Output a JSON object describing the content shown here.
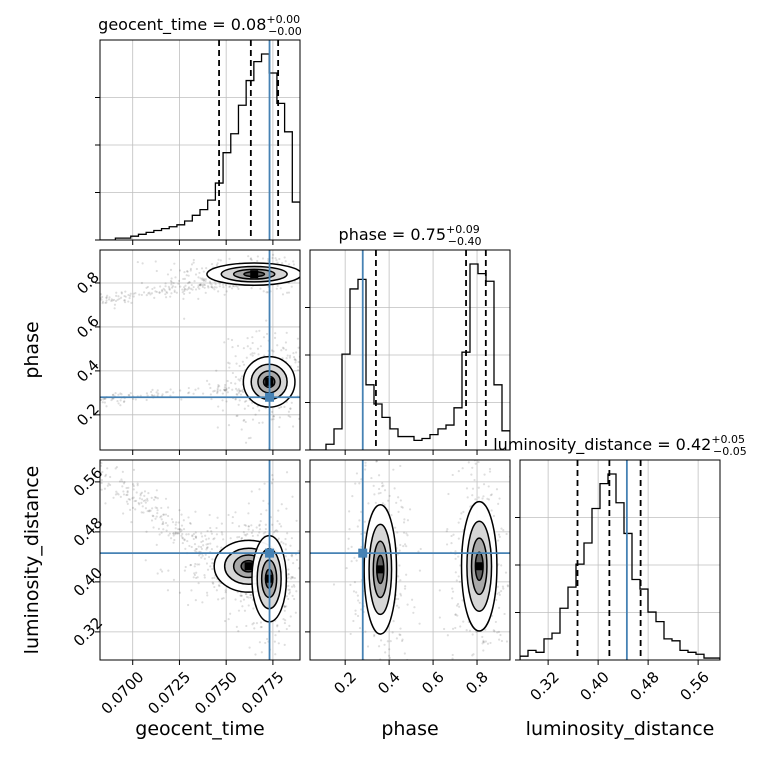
{
  "chart_data": {
    "type": "corner",
    "parameters": [
      "geocent_time",
      "phase",
      "luminosity_distance"
    ],
    "truths": {
      "geocent_time": 0.07732,
      "phase": 0.28,
      "luminosity_distance": 0.446
    },
    "ranges": {
      "geocent_time": [
        0.06825,
        0.07895
      ],
      "phase": [
        0.04,
        0.95
      ],
      "luminosity_distance": [
        0.275,
        0.595
      ]
    },
    "ticks": {
      "geocent_time": [
        0.07,
        0.0725,
        0.075,
        0.0775
      ],
      "phase": [
        0.2,
        0.4,
        0.6,
        0.8
      ],
      "luminosity_distance": [
        0.32,
        0.4,
        0.48,
        0.56
      ]
    },
    "tick_labels": {
      "geocent_time": [
        "0.0700",
        "0.0725",
        "0.0750",
        "0.0775"
      ],
      "phase": [
        "0.2",
        "0.4",
        "0.6",
        "0.8"
      ],
      "luminosity_distance": [
        "0.32",
        "0.40",
        "0.48",
        "0.56"
      ]
    },
    "titles": {
      "geocent_time": {
        "name": "geocent_time",
        "median": "0.08",
        "plus": "+0.00",
        "minus": "−0.00"
      },
      "phase": {
        "name": "phase",
        "median": "0.75",
        "plus": "+0.09",
        "minus": "−0.40"
      },
      "luminosity_distance": {
        "name": "luminosity_distance",
        "median": "0.42",
        "plus": "+0.05",
        "minus": "−0.05"
      }
    },
    "quantiles": {
      "geocent_time": [
        0.07462,
        0.07632,
        0.07778
      ],
      "phase": [
        0.34,
        0.75,
        0.84
      ],
      "luminosity_distance": [
        0.367,
        0.418,
        0.468
      ]
    },
    "histograms": {
      "geocent_time": [
        0,
        0,
        0.01,
        0.01,
        0.02,
        0.03,
        0.04,
        0.05,
        0.06,
        0.07,
        0.08,
        0.1,
        0.13,
        0.16,
        0.21,
        0.3,
        0.46,
        0.56,
        0.71,
        0.84,
        0.94,
        0.98,
        0.88,
        0.72,
        0.57,
        0.2
      ],
      "phase": [
        0,
        0,
        0.03,
        0.11,
        0.5,
        0.84,
        0.89,
        0.34,
        0.24,
        0.17,
        0.11,
        0.07,
        0.07,
        0.05,
        0.06,
        0.08,
        0.11,
        0.13,
        0.22,
        0.51,
        0.97,
        0.92,
        0.88,
        0.34,
        0.1
      ],
      "luminosity_distance": [
        0.02,
        0.05,
        0.04,
        0.11,
        0.14,
        0.27,
        0.38,
        0.5,
        0.61,
        0.79,
        0.92,
        0.97,
        0.82,
        0.66,
        0.42,
        0.37,
        0.25,
        0.2,
        0.11,
        0.1,
        0.05,
        0.04,
        0.03,
        0.01,
        0.01
      ]
    },
    "clusters_2d": {
      "geocent_time_vs_phase": [
        {
          "x": 0.0765,
          "y": 0.84,
          "sx": 0.0011,
          "sy": 0.022,
          "weight": 0.45
        },
        {
          "x": 0.0773,
          "y": 0.35,
          "sx": 0.0006,
          "sy": 0.05,
          "weight": 0.5
        }
      ],
      "geocent_time_vs_luminosity_distance": [
        {
          "x": 0.0762,
          "y": 0.425,
          "sx": 0.0008,
          "sy": 0.018,
          "weight": 0.55
        },
        {
          "x": 0.0773,
          "y": 0.405,
          "sx": 0.0004,
          "sy": 0.03,
          "weight": 0.45
        }
      ],
      "phase_vs_luminosity_distance": [
        {
          "x": 0.36,
          "y": 0.42,
          "sx": 0.032,
          "sy": 0.045,
          "weight": 0.5
        },
        {
          "x": 0.81,
          "y": 0.425,
          "sx": 0.035,
          "sy": 0.045,
          "weight": 0.5
        }
      ]
    },
    "colors": {
      "truth": "#4682b4",
      "quantile": "#000000",
      "grid": "#bfbfbf",
      "points": "#000000"
    }
  }
}
